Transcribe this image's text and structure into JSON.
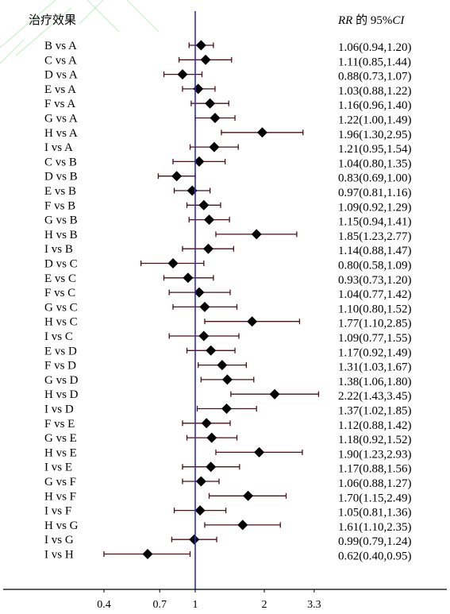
{
  "header": {
    "left_title": "治疗效果",
    "right_title_italic": "RR",
    "right_title_mid": " 的 95%",
    "right_title_ci": "CI"
  },
  "chart_data": {
    "type": "forest",
    "x_scale": "log",
    "reference_line": 1,
    "x_ticks": [
      0.4,
      0.7,
      1,
      2,
      3.3
    ],
    "x_tick_labels": [
      "0.4",
      "0.7",
      "1",
      "2",
      "3.3"
    ],
    "rows": [
      {
        "label": "B vs A",
        "rr": 1.06,
        "lo": 0.94,
        "hi": 1.2,
        "text": "1.06(0.94,1.20)"
      },
      {
        "label": "C vs A",
        "rr": 1.11,
        "lo": 0.85,
        "hi": 1.44,
        "text": "1.11(0.85,1.44)"
      },
      {
        "label": "D vs A",
        "rr": 0.88,
        "lo": 0.73,
        "hi": 1.07,
        "text": "0.88(0.73,1.07)"
      },
      {
        "label": "E vs A",
        "rr": 1.03,
        "lo": 0.88,
        "hi": 1.22,
        "text": "1.03(0.88,1.22)"
      },
      {
        "label": "F vs A",
        "rr": 1.16,
        "lo": 0.96,
        "hi": 1.4,
        "text": "1.16(0.96,1.40)"
      },
      {
        "label": "G vs A",
        "rr": 1.22,
        "lo": 1.0,
        "hi": 1.49,
        "text": "1.22(1.00,1.49)"
      },
      {
        "label": "H vs A",
        "rr": 1.96,
        "lo": 1.3,
        "hi": 2.95,
        "text": "1.96(1.30,2.95)"
      },
      {
        "label": "I vs A",
        "rr": 1.21,
        "lo": 0.95,
        "hi": 1.54,
        "text": "1.21(0.95,1.54)"
      },
      {
        "label": "C vs B",
        "rr": 1.04,
        "lo": 0.8,
        "hi": 1.35,
        "text": "1.04(0.80,1.35)"
      },
      {
        "label": "D vs B",
        "rr": 0.83,
        "lo": 0.69,
        "hi": 1.0,
        "text": "0.83(0.69,1.00)"
      },
      {
        "label": "E vs B",
        "rr": 0.97,
        "lo": 0.81,
        "hi": 1.16,
        "text": "0.97(0.81,1.16)"
      },
      {
        "label": "F vs B",
        "rr": 1.09,
        "lo": 0.92,
        "hi": 1.29,
        "text": "1.09(0.92,1.29)"
      },
      {
        "label": "G vs B",
        "rr": 1.15,
        "lo": 0.94,
        "hi": 1.41,
        "text": "1.15(0.94,1.41)"
      },
      {
        "label": "H vs B",
        "rr": 1.85,
        "lo": 1.23,
        "hi": 2.77,
        "text": "1.85(1.23,2.77)"
      },
      {
        "label": "I vs B",
        "rr": 1.14,
        "lo": 0.88,
        "hi": 1.47,
        "text": "1.14(0.88,1.47)"
      },
      {
        "label": "D vs C",
        "rr": 0.8,
        "lo": 0.58,
        "hi": 1.09,
        "text": "0.80(0.58,1.09)"
      },
      {
        "label": "E vs C",
        "rr": 0.93,
        "lo": 0.73,
        "hi": 1.2,
        "text": "0.93(0.73,1.20)"
      },
      {
        "label": "F vs C",
        "rr": 1.04,
        "lo": 0.77,
        "hi": 1.42,
        "text": "1.04(0.77,1.42)"
      },
      {
        "label": "G vs C",
        "rr": 1.1,
        "lo": 0.8,
        "hi": 1.52,
        "text": "1.10(0.80,1.52)"
      },
      {
        "label": "H vs C",
        "rr": 1.77,
        "lo": 1.1,
        "hi": 2.85,
        "text": "1.77(1.10,2.85)"
      },
      {
        "label": "I vs C",
        "rr": 1.09,
        "lo": 0.77,
        "hi": 1.55,
        "text": "1.09(0.77,1.55)"
      },
      {
        "label": "E vs D",
        "rr": 1.17,
        "lo": 0.92,
        "hi": 1.49,
        "text": "1.17(0.92,1.49)"
      },
      {
        "label": "F vs D",
        "rr": 1.31,
        "lo": 1.03,
        "hi": 1.67,
        "text": "1.31(1.03,1.67)"
      },
      {
        "label": "G vs D",
        "rr": 1.38,
        "lo": 1.06,
        "hi": 1.8,
        "text": "1.38(1.06,1.80)"
      },
      {
        "label": "H vs D",
        "rr": 2.22,
        "lo": 1.43,
        "hi": 3.45,
        "text": "2.22(1.43,3.45)"
      },
      {
        "label": "I vs D",
        "rr": 1.37,
        "lo": 1.02,
        "hi": 1.85,
        "text": "1.37(1.02,1.85)"
      },
      {
        "label": "F vs E",
        "rr": 1.12,
        "lo": 0.88,
        "hi": 1.42,
        "text": "1.12(0.88,1.42)"
      },
      {
        "label": "G vs E",
        "rr": 1.18,
        "lo": 0.92,
        "hi": 1.52,
        "text": "1.18(0.92,1.52)"
      },
      {
        "label": "H vs E",
        "rr": 1.9,
        "lo": 1.23,
        "hi": 2.93,
        "text": "1.90(1.23,2.93)"
      },
      {
        "label": "I vs E",
        "rr": 1.17,
        "lo": 0.88,
        "hi": 1.56,
        "text": "1.17(0.88,1.56)"
      },
      {
        "label": "G vs F",
        "rr": 1.06,
        "lo": 0.88,
        "hi": 1.27,
        "text": "1.06(0.88,1.27)"
      },
      {
        "label": "H vs F",
        "rr": 1.7,
        "lo": 1.15,
        "hi": 2.49,
        "text": "1.70(1.15,2.49)"
      },
      {
        "label": "I vs F",
        "rr": 1.05,
        "lo": 0.81,
        "hi": 1.36,
        "text": "1.05(0.81,1.36)"
      },
      {
        "label": "H vs G",
        "rr": 1.61,
        "lo": 1.1,
        "hi": 2.35,
        "text": "1.61(1.10,2.35)"
      },
      {
        "label": "I vs G",
        "rr": 0.99,
        "lo": 0.79,
        "hi": 1.24,
        "text": "0.99(0.79,1.24)"
      },
      {
        "label": "I vs H",
        "rr": 0.62,
        "lo": 0.4,
        "hi": 0.95,
        "text": "0.62(0.40,0.95)"
      }
    ],
    "colors": {
      "ci_line": "#4a0f17",
      "marker": "#000000",
      "reference_line": "#2b2bd6",
      "axis": "#000000",
      "watermark": "#9be7a0"
    }
  }
}
